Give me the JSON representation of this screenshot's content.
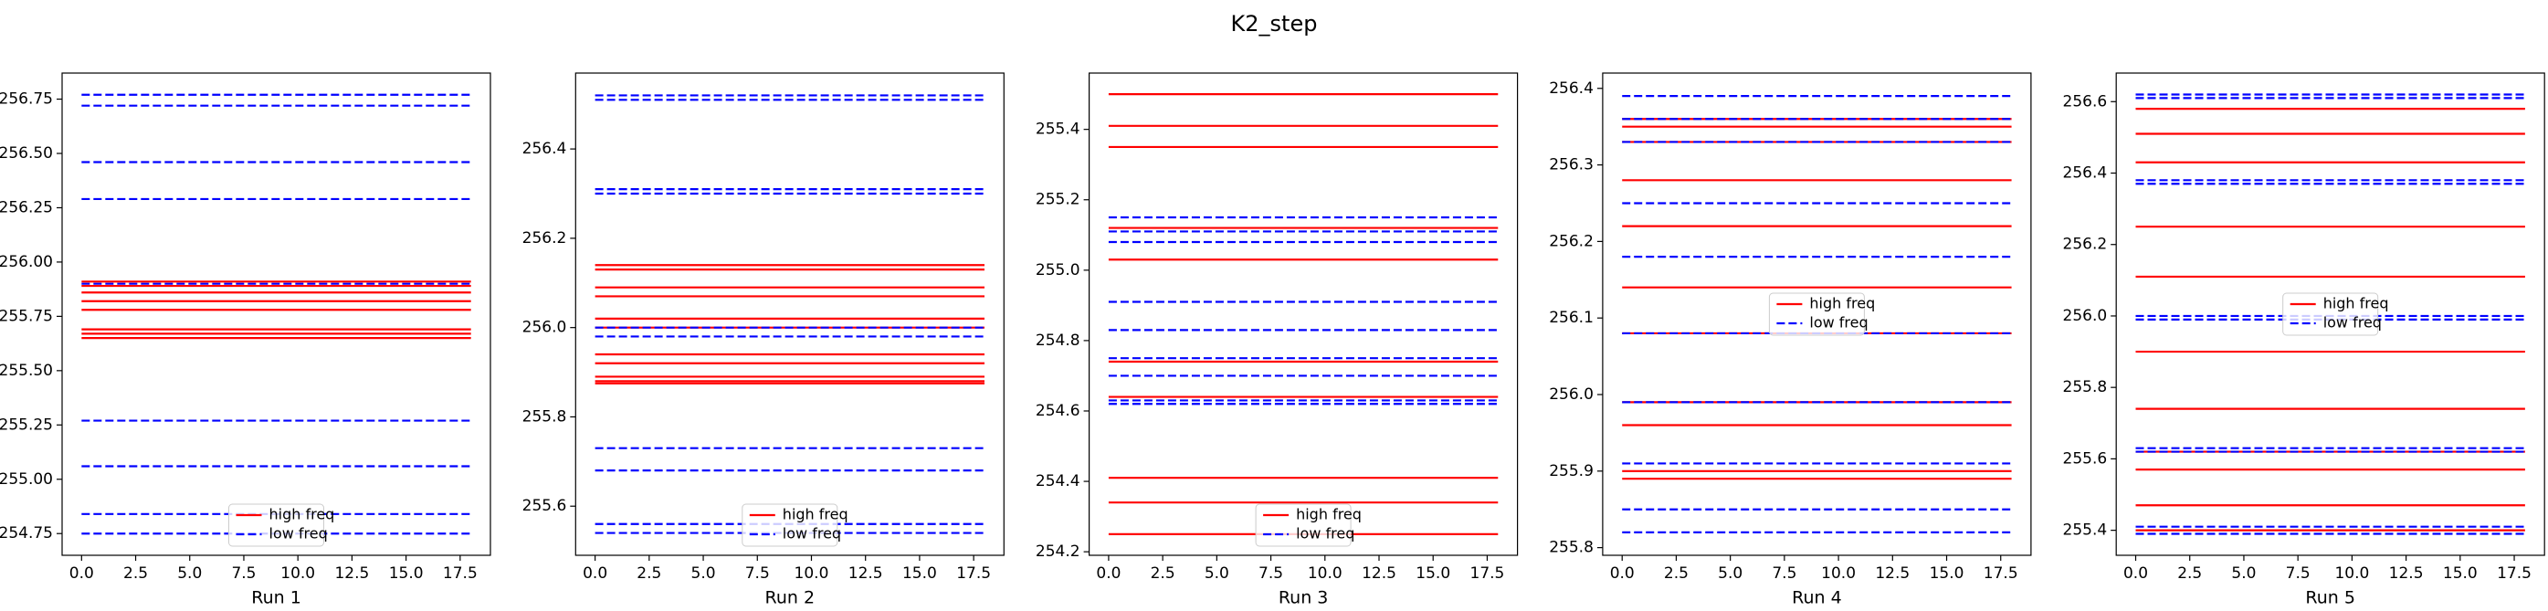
{
  "title": "K2_step",
  "chart_data": [
    {
      "type": "line",
      "xlabel": "Run 1",
      "x": [
        0,
        18
      ],
      "xlim": [
        -0.9,
        18.9
      ],
      "xticks": [
        {
          "value": 0,
          "label": "0.0"
        },
        2.5,
        {
          "value": 5,
          "label": "5.0"
        },
        7.5,
        {
          "value": 10,
          "label": "10.0"
        },
        12.5,
        {
          "value": 15,
          "label": "15.0"
        },
        17.5
      ],
      "ylim": [
        254.65,
        256.87
      ],
      "yticks": [
        254.75,
        {
          "value": 255,
          "label": "255.00"
        },
        255.25,
        {
          "value": 255.5,
          "label": "255.50"
        },
        255.75,
        {
          "value": 256,
          "label": "256.00"
        },
        256.25,
        {
          "value": 256.5,
          "label": "256.50"
        },
        256.75
      ],
      "legend": "lower center",
      "series": [
        {
          "name": "high freq",
          "color": "#ff0000",
          "linestyle": "solid",
          "levels": [
            255.91,
            255.89,
            255.86,
            255.82,
            255.78,
            255.69,
            255.67,
            255.65
          ]
        },
        {
          "name": "low freq",
          "color": "#0000ff",
          "linestyle": "dashed",
          "levels": [
            256.77,
            256.72,
            256.46,
            256.29,
            255.9,
            255.27,
            255.06,
            254.84,
            254.75
          ]
        }
      ]
    },
    {
      "type": "line",
      "xlabel": "Run 2",
      "x": [
        0,
        18
      ],
      "xlim": [
        -0.9,
        18.9
      ],
      "xticks": [
        {
          "value": 0,
          "label": "0.0"
        },
        2.5,
        {
          "value": 5,
          "label": "5.0"
        },
        7.5,
        {
          "value": 10,
          "label": "10.0"
        },
        12.5,
        {
          "value": 15,
          "label": "15.0"
        },
        17.5
      ],
      "ylim": [
        255.49,
        256.57
      ],
      "yticks": [
        255.6,
        255.8,
        {
          "value": 256,
          "label": "256.0"
        },
        256.2,
        256.4
      ],
      "legend": "lower center",
      "series": [
        {
          "name": "high freq",
          "color": "#ff0000",
          "linestyle": "solid",
          "levels": [
            256.14,
            256.13,
            256.09,
            256.07,
            256.02,
            256.0,
            255.94,
            255.92,
            255.89,
            255.88,
            255.875
          ]
        },
        {
          "name": "low freq",
          "color": "#0000ff",
          "linestyle": "dashed",
          "levels": [
            256.52,
            256.51,
            256.31,
            256.3,
            256.0,
            255.98,
            255.73,
            255.68,
            255.56,
            255.54
          ]
        }
      ]
    },
    {
      "type": "line",
      "xlabel": "Run 3",
      "x": [
        0,
        18
      ],
      "xlim": [
        -0.9,
        18.9
      ],
      "xticks": [
        {
          "value": 0,
          "label": "0.0"
        },
        2.5,
        {
          "value": 5,
          "label": "5.0"
        },
        7.5,
        {
          "value": 10,
          "label": "10.0"
        },
        12.5,
        {
          "value": 15,
          "label": "15.0"
        },
        17.5
      ],
      "ylim": [
        254.19,
        255.56
      ],
      "yticks": [
        254.2,
        254.4,
        254.6,
        254.8,
        {
          "value": 255,
          "label": "255.0"
        },
        255.2,
        255.4
      ],
      "legend": "lower center",
      "series": [
        {
          "name": "high freq",
          "color": "#ff0000",
          "linestyle": "solid",
          "levels": [
            255.5,
            255.41,
            255.35,
            255.12,
            255.03,
            254.74,
            254.64,
            254.41,
            254.34,
            254.25
          ]
        },
        {
          "name": "low freq",
          "color": "#0000ff",
          "linestyle": "dashed",
          "levels": [
            255.15,
            255.11,
            255.08,
            254.91,
            254.83,
            254.75,
            254.7,
            254.63,
            254.62
          ]
        }
      ]
    },
    {
      "type": "line",
      "xlabel": "Run 4",
      "x": [
        0,
        18
      ],
      "xlim": [
        -0.9,
        18.9
      ],
      "xticks": [
        {
          "value": 0,
          "label": "0.0"
        },
        2.5,
        {
          "value": 5,
          "label": "5.0"
        },
        7.5,
        {
          "value": 10,
          "label": "10.0"
        },
        12.5,
        {
          "value": 15,
          "label": "15.0"
        },
        17.5
      ],
      "ylim": [
        255.79,
        256.42
      ],
      "yticks": [
        255.8,
        255.9,
        {
          "value": 256,
          "label": "256.0"
        },
        256.1,
        256.2,
        256.3,
        256.4
      ],
      "legend": "center",
      "series": [
        {
          "name": "high freq",
          "color": "#ff0000",
          "linestyle": "solid",
          "levels": [
            256.36,
            256.35,
            256.33,
            256.28,
            256.22,
            256.14,
            256.08,
            255.99,
            255.96,
            255.9,
            255.89
          ]
        },
        {
          "name": "low freq",
          "color": "#0000ff",
          "linestyle": "dashed",
          "levels": [
            256.39,
            256.36,
            256.33,
            256.25,
            256.18,
            256.08,
            255.99,
            255.91,
            255.85,
            255.82
          ]
        }
      ]
    },
    {
      "type": "line",
      "xlabel": "Run 5",
      "x": [
        0,
        18
      ],
      "xlim": [
        -0.9,
        18.9
      ],
      "xticks": [
        {
          "value": 0,
          "label": "0.0"
        },
        2.5,
        {
          "value": 5,
          "label": "5.0"
        },
        7.5,
        {
          "value": 10,
          "label": "10.0"
        },
        12.5,
        {
          "value": 15,
          "label": "15.0"
        },
        17.5
      ],
      "ylim": [
        255.33,
        256.68
      ],
      "yticks": [
        255.4,
        255.6,
        255.8,
        {
          "value": 256,
          "label": "256.0"
        },
        256.2,
        256.4,
        256.6
      ],
      "legend": "center",
      "series": [
        {
          "name": "high freq",
          "color": "#ff0000",
          "linestyle": "solid",
          "levels": [
            256.58,
            256.51,
            256.43,
            256.25,
            256.11,
            255.9,
            255.74,
            255.62,
            255.57,
            255.47,
            255.4
          ]
        },
        {
          "name": "low freq",
          "color": "#0000ff",
          "linestyle": "dashed",
          "levels": [
            256.62,
            256.61,
            256.38,
            256.37,
            256.0,
            255.99,
            255.63,
            255.62,
            255.41,
            255.39
          ]
        }
      ]
    }
  ]
}
